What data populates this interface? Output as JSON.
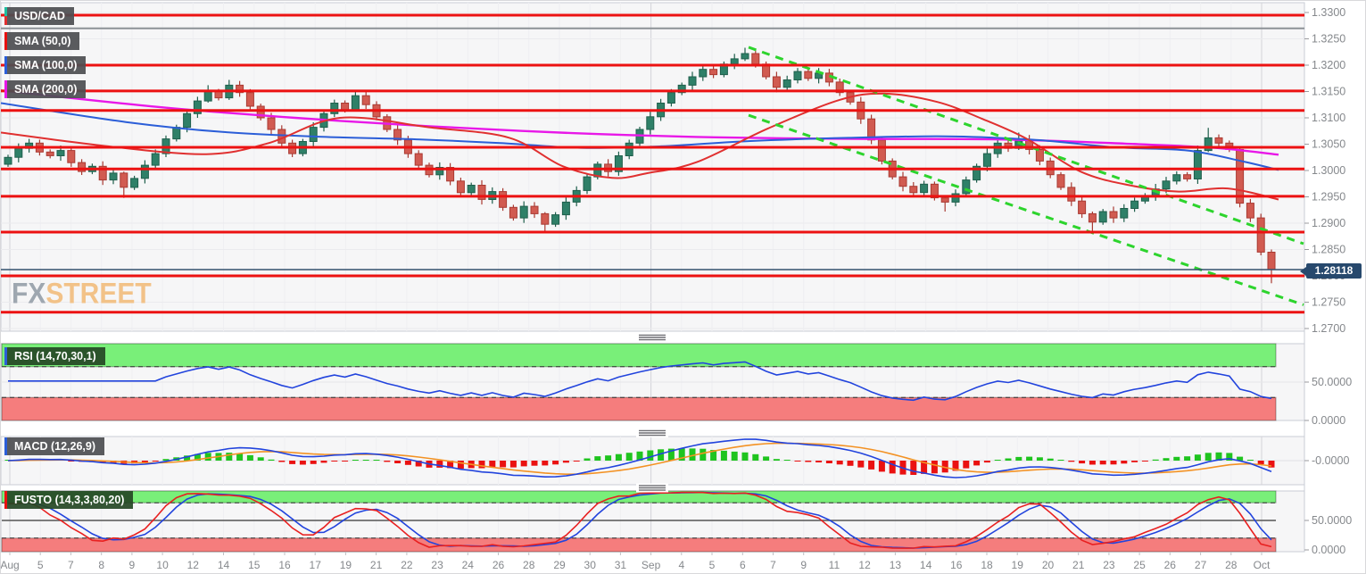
{
  "legend": {
    "symbol": "USD/CAD",
    "sma50_label": "SMA (50,0)",
    "sma100_label": "SMA (100,0)",
    "sma200_label": "SMA (200,0)"
  },
  "panels": {
    "rsi_label": "RSI (14,70,30,1)",
    "macd_label": "MACD (12,26,9)",
    "fusto_label": "FUSTO (14,3,3,80,20)"
  },
  "price_badge": "1.28118",
  "watermark": {
    "fx": "FX",
    "street": "STREET"
  },
  "colors": {
    "up_fill": "#2f8068",
    "up_stroke": "#1f5f4c",
    "down_fill": "#d15b51",
    "down_stroke": "#a93a32",
    "sr_line": "#ec1212",
    "gray_line": "#8c9196",
    "sma50": "#e03030",
    "sma100": "#2b5ed8",
    "sma200": "#e818e8",
    "trend": "#2dd42d",
    "price_line": "#33516e",
    "rsi_line": "#2244dd",
    "macd_line": "#2244dd",
    "signal_line": "#f39224",
    "hist_pos": "#1fc41f",
    "hist_neg": "#ea1111",
    "stoch_k": "#e82020",
    "stoch_d": "#2244dd",
    "zone_green": "#79ef79",
    "zone_red": "#f57d7d",
    "panel_bg": "#f6f6f7",
    "panel_border": "#c9ccd4",
    "axis_text": "#85888c"
  },
  "chart_data": {
    "type": "candlestick",
    "symbol": "USD/CAD",
    "current_price": 1.28118,
    "price_axis_labels": [
      "1.3300",
      "1.3250",
      "1.3200",
      "1.3150",
      "1.3100",
      "1.3050",
      "1.3000",
      "1.2950",
      "1.2900",
      "1.2850",
      "1.2800",
      "1.2750",
      "1.2700"
    ],
    "price_axis_values": [
      1.33,
      1.325,
      1.32,
      1.315,
      1.31,
      1.305,
      1.3,
      1.295,
      1.29,
      1.285,
      1.28,
      1.275,
      1.27
    ],
    "date_labels": [
      "Aug",
      "5",
      "7",
      "8",
      "9",
      "10",
      "12",
      "14",
      "15",
      "16",
      "17",
      "19",
      "21",
      "22",
      "23",
      "24",
      "26",
      "28",
      "29",
      "30",
      "31",
      "Sep",
      "4",
      "5",
      "6",
      "7",
      "9",
      "11",
      "12",
      "13",
      "14",
      "16",
      "18",
      "19",
      "20",
      "21",
      "23",
      "25",
      "26",
      "27",
      "28",
      "Oct"
    ],
    "month_label_indexes": [
      21,
      41
    ],
    "sr_levels": [
      1.3295,
      1.32,
      1.3151,
      1.3114,
      1.3044,
      1.3003,
      1.2951,
      1.2883,
      1.28,
      1.2731
    ],
    "gray_level": 1.327,
    "first_open": 1.3012,
    "closes": [
      1.3025,
      1.3042,
      1.3052,
      1.3035,
      1.3028,
      1.3038,
      1.3015,
      1.2998,
      1.3008,
      1.2982,
      1.2995,
      1.2968,
      1.2985,
      1.301,
      1.3032,
      1.306,
      1.3082,
      1.3108,
      1.3132,
      1.315,
      1.3138,
      1.3162,
      1.3148,
      1.3122,
      1.31,
      1.3078,
      1.3052,
      1.3032,
      1.3055,
      1.3082,
      1.3108,
      1.3128,
      1.3115,
      1.3142,
      1.3125,
      1.3102,
      1.3078,
      1.3058,
      1.3032,
      1.301,
      1.2992,
      1.3006,
      1.298,
      1.2958,
      1.2972,
      1.2945,
      1.296,
      1.293,
      1.291,
      1.2932,
      1.2918,
      1.2898,
      1.2916,
      1.294,
      1.2962,
      1.2988,
      1.3012,
      1.2998,
      1.3028,
      1.3052,
      1.3078,
      1.3102,
      1.3128,
      1.3148,
      1.3162,
      1.3178,
      1.3192,
      1.3182,
      1.3202,
      1.3212,
      1.3222,
      1.3202,
      1.3178,
      1.3158,
      1.3172,
      1.3188,
      1.3175,
      1.3185,
      1.3168,
      1.3148,
      1.313,
      1.3098,
      1.3058,
      1.3018,
      1.2988,
      1.297,
      1.2958,
      1.2974,
      1.2948,
      1.294,
      1.2956,
      1.2982,
      1.3008,
      1.3032,
      1.3052,
      1.3042,
      1.3058,
      1.304,
      1.3018,
      1.2992,
      1.2968,
      1.2942,
      1.2918,
      1.2902,
      1.2922,
      1.291,
      1.2928,
      1.2942,
      1.2952,
      1.2965,
      1.298,
      1.2992,
      1.2984,
      1.3038,
      1.3062,
      1.3052,
      1.304,
      1.2938,
      1.291,
      1.2845,
      1.2812
    ],
    "wick_overrides": {
      "11": [
        0.0003,
        0.002
      ],
      "19": [
        0.0012,
        0.0003
      ],
      "21": [
        0.001,
        0.0004
      ],
      "33": [
        0.0008,
        0.0003
      ],
      "51": [
        0.0003,
        0.0016
      ],
      "70": [
        0.0011,
        0.0004
      ],
      "89": [
        0.0004,
        0.0018
      ],
      "96": [
        0.0014,
        0.0003
      ],
      "103": [
        0.0004,
        0.0017
      ],
      "114": [
        0.0019,
        0.0003
      ],
      "117": [
        0.0006,
        0.0008
      ],
      "119": [
        0.0008,
        0.0006
      ],
      "120": [
        0.0005,
        0.0026
      ]
    },
    "sma50_points": [
      [
        0,
        1.3072
      ],
      [
        120,
        1.3046
      ],
      [
        230,
        1.3031
      ],
      [
        300,
        1.3052
      ],
      [
        380,
        1.31
      ],
      [
        480,
        1.3082
      ],
      [
        570,
        1.3062
      ],
      [
        630,
        1.3008
      ],
      [
        685,
        1.2986
      ],
      [
        725,
        1.2995
      ],
      [
        780,
        1.3016
      ],
      [
        860,
        1.308
      ],
      [
        940,
        1.3134
      ],
      [
        990,
        1.3146
      ],
      [
        1050,
        1.313
      ],
      [
        1100,
        1.3098
      ],
      [
        1150,
        1.306
      ],
      [
        1210,
        1.2998
      ],
      [
        1265,
        1.2972
      ],
      [
        1320,
        1.296
      ],
      [
        1375,
        1.2966
      ],
      [
        1432,
        1.2945
      ]
    ],
    "sma100_points": [
      [
        0,
        1.3128
      ],
      [
        140,
        1.3092
      ],
      [
        250,
        1.3073
      ],
      [
        360,
        1.3064
      ],
      [
        470,
        1.3059
      ],
      [
        560,
        1.3052
      ],
      [
        650,
        1.3043
      ],
      [
        740,
        1.3046
      ],
      [
        840,
        1.3056
      ],
      [
        950,
        1.3062
      ],
      [
        1060,
        1.3065
      ],
      [
        1160,
        1.3058
      ],
      [
        1250,
        1.3044
      ],
      [
        1330,
        1.3038
      ],
      [
        1390,
        1.3018
      ],
      [
        1432,
        1.3001
      ]
    ],
    "sma200_points": [
      [
        0,
        1.3152
      ],
      [
        180,
        1.312
      ],
      [
        330,
        1.31
      ],
      [
        480,
        1.3084
      ],
      [
        640,
        1.3071
      ],
      [
        800,
        1.3063
      ],
      [
        960,
        1.306
      ],
      [
        1120,
        1.3059
      ],
      [
        1260,
        1.3051
      ],
      [
        1360,
        1.3043
      ],
      [
        1432,
        1.303
      ]
    ],
    "trendlines": [
      {
        "from": [
          838,
          1.3234
        ],
        "to": [
          1460,
          1.2861
        ]
      },
      {
        "from": [
          838,
          1.3105
        ],
        "to": [
          1460,
          1.2745
        ]
      }
    ],
    "rsi": {
      "params": [
        14,
        70,
        30,
        1
      ],
      "upper": 70,
      "lower": 30,
      "axis_labels": [
        [
          "50.0000",
          50
        ],
        [
          "0.0000",
          0
        ]
      ]
    },
    "macd": {
      "params": [
        12,
        26,
        9
      ],
      "axis_labels": [
        [
          "-0.0000",
          0
        ]
      ]
    },
    "stoch": {
      "params": [
        14,
        3,
        3,
        80,
        20
      ],
      "upper": 80,
      "lower": 20,
      "axis_labels": [
        [
          "50.0000",
          50
        ],
        [
          "0.0000",
          0
        ]
      ]
    }
  }
}
